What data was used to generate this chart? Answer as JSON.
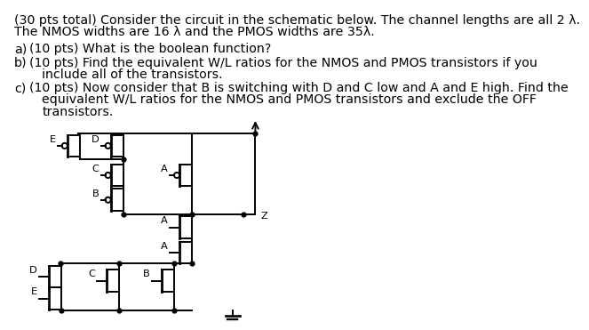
{
  "title_line1": "(30 pts total) Consider the circuit in the schematic below. The channel lengths are all 2 λ.",
  "title_line2": "The NMOS widths are 16 λ and the PMOS widths are 35λ.",
  "bg_color": "#ffffff",
  "text_color": "#000000",
  "font_size": 10.2
}
